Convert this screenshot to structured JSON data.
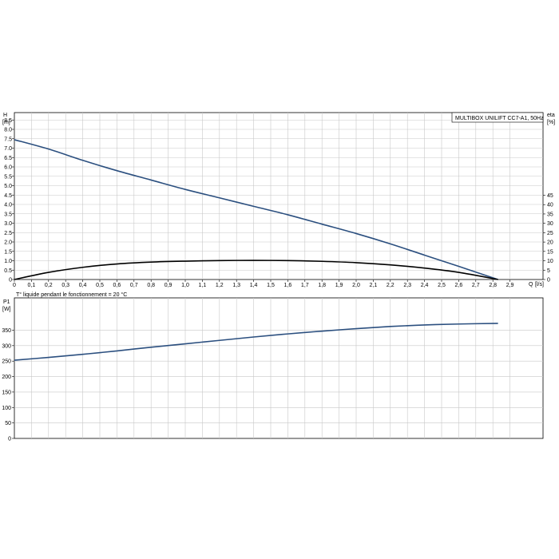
{
  "chart_data": [
    {
      "type": "line",
      "title": "MULTIBOX UNILIFT CC7-A1, 50Hz",
      "xlabel": "Q [l/s]",
      "x_unit_label": "Q",
      "x_unit": "[l/s]",
      "ylabel": "H",
      "ylabel_unit": "[m]",
      "y2label": "eta",
      "y2label_unit": "[%]",
      "xlim": [
        0,
        3.1
      ],
      "ylim": [
        0,
        8.7
      ],
      "y2lim": [
        0,
        50
      ],
      "grid": true,
      "x_ticks": [
        "0",
        "0,1",
        "0,2",
        "0,3",
        "0,4",
        "0,5",
        "0,6",
        "0,7",
        "0,8",
        "0,9",
        "1,0",
        "1,1",
        "1,2",
        "1,3",
        "1,4",
        "1,5",
        "1,6",
        "1,7",
        "1,8",
        "1,9",
        "2,0",
        "2,1",
        "2,2",
        "2,3",
        "2,4",
        "2,5",
        "2,6",
        "2,7",
        "2,8",
        "2,9"
      ],
      "y_ticks": [
        "0",
        "0.5",
        "1.0",
        "1.5",
        "2.0",
        "2.5",
        "3.0",
        "3.5",
        "4.0",
        "4.5",
        "5.0",
        "5.5",
        "6.0",
        "6.5",
        "7.0",
        "7.5",
        "8.0",
        "8.5"
      ],
      "y2_ticks": [
        "0",
        "5",
        "10",
        "15",
        "20",
        "25",
        "30",
        "35",
        "40",
        "45"
      ],
      "series": [
        {
          "axis": "left",
          "color": "#2b4f7f",
          "x": [
            0,
            0.2,
            0.4,
            0.6,
            0.8,
            1.0,
            1.2,
            1.4,
            1.6,
            1.8,
            2.0,
            2.2,
            2.4,
            2.6,
            2.83
          ],
          "y": [
            7.45,
            6.95,
            6.35,
            5.8,
            5.3,
            4.8,
            4.35,
            3.9,
            3.45,
            2.95,
            2.45,
            1.9,
            1.3,
            0.7,
            0
          ]
        },
        {
          "axis": "right",
          "color": "#000000",
          "x": [
            0,
            0.2,
            0.4,
            0.6,
            0.8,
            1.0,
            1.2,
            1.4,
            1.6,
            1.8,
            2.0,
            2.2,
            2.4,
            2.6,
            2.83
          ],
          "y": [
            0,
            3.8,
            6.5,
            8.3,
            9.3,
            9.8,
            10.1,
            10.2,
            10.1,
            9.7,
            9.0,
            7.8,
            6.1,
            3.8,
            0
          ]
        }
      ]
    },
    {
      "type": "line",
      "title": "",
      "xlabel": "",
      "ylabel": "P1",
      "ylabel_unit": "[W]",
      "ylim": [
        0,
        385
      ],
      "xlim": [
        0,
        3.1
      ],
      "grid": true,
      "y_ticks": [
        "0",
        "50",
        "100",
        "150",
        "200",
        "250",
        "300",
        "350"
      ],
      "series": [
        {
          "color": "#2b4f7f",
          "x": [
            0,
            0.2,
            0.4,
            0.6,
            0.8,
            1.0,
            1.2,
            1.4,
            1.6,
            1.8,
            2.0,
            2.2,
            2.4,
            2.6,
            2.83
          ],
          "y": [
            253,
            262,
            272,
            283,
            295,
            306,
            317,
            328,
            338,
            347,
            355,
            362,
            367,
            370,
            372
          ]
        }
      ]
    }
  ],
  "note": "T° liquide pendant le fonctionnement = 20 °C"
}
